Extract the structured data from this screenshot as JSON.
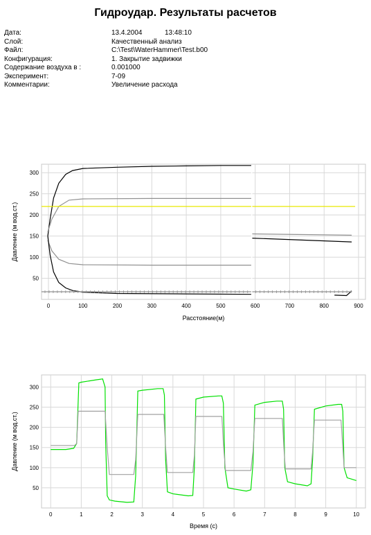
{
  "report": {
    "title": "Гидроудар. Результаты расчетов",
    "fields": [
      {
        "label": "Дата:",
        "value": "13.4.2004",
        "extra": "13:48:10"
      },
      {
        "label": "Слой:",
        "value": "Качественный анализ"
      },
      {
        "label": "Файл:",
        "value": "C:\\Test\\WaterHammer\\Test.b00"
      },
      {
        "label": "Конфигурация:",
        "value": "1. Закрытие задвижки"
      },
      {
        "label": "Содержание воздуха в :",
        "value": "0.001000"
      },
      {
        "label": "Эксперимент:",
        "value": "7-09"
      },
      {
        "label": "Комментарии:",
        "value": "Увеличение расхода"
      }
    ]
  },
  "chart_data": [
    {
      "type": "line",
      "xlabel": "Расстояние(м)",
      "ylabel": "Давление (м вод.ст.)",
      "xlim": [
        -20,
        920
      ],
      "ylim": [
        0,
        320
      ],
      "xticks": [
        0,
        100,
        200,
        300,
        400,
        500,
        600,
        700,
        800,
        900
      ],
      "yticks": [
        50,
        100,
        150,
        200,
        250,
        300
      ],
      "grid": true,
      "colors": {
        "max": "#000000",
        "min": "#000000",
        "upper": "#909090",
        "lower": "#909090",
        "reference": "#e8e800",
        "profile": "#909090"
      },
      "series": [
        {
          "key": "max",
          "points": [
            [
              -2,
              150
            ],
            [
              5,
              190
            ],
            [
              15,
              240
            ],
            [
              30,
              275
            ],
            [
              50,
              296
            ],
            [
              70,
              305
            ],
            [
              100,
              310
            ],
            [
              200,
              313
            ],
            [
              300,
              315
            ],
            [
              400,
              316
            ],
            [
              500,
              317
            ],
            [
              590,
              317
            ]
          ]
        },
        {
          "key": "upper",
          "points": [
            [
              -2,
              160
            ],
            [
              10,
              190
            ],
            [
              30,
              220
            ],
            [
              60,
              235
            ],
            [
              100,
              238
            ],
            [
              300,
              239
            ],
            [
              590,
              239
            ]
          ]
        },
        {
          "key": "lower",
          "points": [
            [
              -2,
              140
            ],
            [
              10,
              115
            ],
            [
              30,
              95
            ],
            [
              60,
              85
            ],
            [
              100,
              82
            ],
            [
              300,
              81
            ],
            [
              590,
              81
            ]
          ]
        },
        {
          "key": "min",
          "points": [
            [
              -2,
              150
            ],
            [
              5,
              105
            ],
            [
              15,
              65
            ],
            [
              30,
              40
            ],
            [
              50,
              27
            ],
            [
              70,
              21
            ],
            [
              100,
              17
            ],
            [
              200,
              14
            ],
            [
              400,
              13
            ],
            [
              590,
              12
            ]
          ]
        },
        {
          "key": "upper",
          "points": [
            [
              590,
              155
            ],
            [
              880,
              152
            ]
          ]
        },
        {
          "key": "max",
          "points": [
            [
              590,
              145
            ],
            [
              880,
              136
            ]
          ]
        },
        {
          "key": "min",
          "points": [
            [
              830,
              10
            ],
            [
              865,
              9
            ],
            [
              880,
              20
            ]
          ]
        },
        {
          "key": "profile",
          "points": [
            [
              -20,
              18
            ],
            [
              880,
              18
            ]
          ]
        },
        {
          "key": "reference",
          "points": [
            [
              -20,
              220
            ],
            [
              890,
              220
            ]
          ]
        }
      ]
    },
    {
      "type": "line",
      "xlabel": "Время (с)",
      "ylabel": "Давление (м вод.ст.)",
      "xlim": [
        -0.3,
        10.3
      ],
      "ylim": [
        0,
        330
      ],
      "xticks": [
        0,
        1,
        2,
        3,
        4,
        5,
        6,
        7,
        8,
        9,
        10
      ],
      "yticks": [
        50,
        100,
        150,
        200,
        250,
        300
      ],
      "grid": true,
      "colors": {
        "green": "#00e000",
        "gray": "#a0a0a0"
      },
      "series": [
        {
          "key": "green",
          "points": [
            [
              0,
              145
            ],
            [
              0.5,
              145
            ],
            [
              0.75,
              148
            ],
            [
              0.85,
              160
            ],
            [
              0.92,
              310
            ],
            [
              1,
              312
            ],
            [
              1.5,
              318
            ],
            [
              1.7,
              320
            ],
            [
              1.78,
              300
            ],
            [
              1.8,
              160
            ],
            [
              1.85,
              30
            ],
            [
              1.92,
              20
            ],
            [
              2.1,
              17
            ],
            [
              2.5,
              14
            ],
            [
              2.72,
              15
            ],
            [
              2.78,
              80
            ],
            [
              2.85,
              290
            ],
            [
              3,
              292
            ],
            [
              3.5,
              296
            ],
            [
              3.68,
              296
            ],
            [
              3.72,
              280
            ],
            [
              3.76,
              120
            ],
            [
              3.82,
              40
            ],
            [
              4,
              35
            ],
            [
              4.5,
              30
            ],
            [
              4.65,
              31
            ],
            [
              4.7,
              100
            ],
            [
              4.75,
              270
            ],
            [
              5,
              275
            ],
            [
              5.5,
              278
            ],
            [
              5.6,
              278
            ],
            [
              5.65,
              260
            ],
            [
              5.7,
              100
            ],
            [
              5.8,
              50
            ],
            [
              6,
              47
            ],
            [
              6.4,
              42
            ],
            [
              6.55,
              45
            ],
            [
              6.62,
              110
            ],
            [
              6.68,
              255
            ],
            [
              7,
              262
            ],
            [
              7.4,
              265
            ],
            [
              7.58,
              265
            ],
            [
              7.62,
              245
            ],
            [
              7.66,
              100
            ],
            [
              7.75,
              65
            ],
            [
              8,
              60
            ],
            [
              8.4,
              55
            ],
            [
              8.52,
              60
            ],
            [
              8.57,
              120
            ],
            [
              8.63,
              245
            ],
            [
              9,
              253
            ],
            [
              9.4,
              257
            ],
            [
              9.52,
              257
            ],
            [
              9.56,
              240
            ],
            [
              9.6,
              100
            ],
            [
              9.7,
              75
            ],
            [
              10,
              68
            ]
          ]
        },
        {
          "key": "gray",
          "points": [
            [
              0,
              155
            ],
            [
              0.78,
              155
            ],
            [
              0.85,
              160
            ],
            [
              0.9,
              240
            ],
            [
              1.5,
              240
            ],
            [
              1.78,
              240
            ],
            [
              1.85,
              150
            ],
            [
              1.92,
              83
            ],
            [
              2.3,
              83
            ],
            [
              2.72,
              83
            ],
            [
              2.78,
              120
            ],
            [
              2.85,
              232
            ],
            [
              3.7,
              232
            ],
            [
              3.76,
              150
            ],
            [
              3.82,
              88
            ],
            [
              4.65,
              88
            ],
            [
              4.7,
              130
            ],
            [
              4.75,
              227
            ],
            [
              5.6,
              227
            ],
            [
              5.66,
              150
            ],
            [
              5.72,
              93
            ],
            [
              6.55,
              93
            ],
            [
              6.62,
              140
            ],
            [
              6.68,
              222
            ],
            [
              7.58,
              222
            ],
            [
              7.63,
              150
            ],
            [
              7.68,
              97
            ],
            [
              8.52,
              97
            ],
            [
              8.57,
              140
            ],
            [
              8.63,
              218
            ],
            [
              9.5,
              218
            ],
            [
              9.56,
              150
            ],
            [
              9.6,
              100
            ],
            [
              10,
              100
            ]
          ]
        }
      ]
    }
  ]
}
